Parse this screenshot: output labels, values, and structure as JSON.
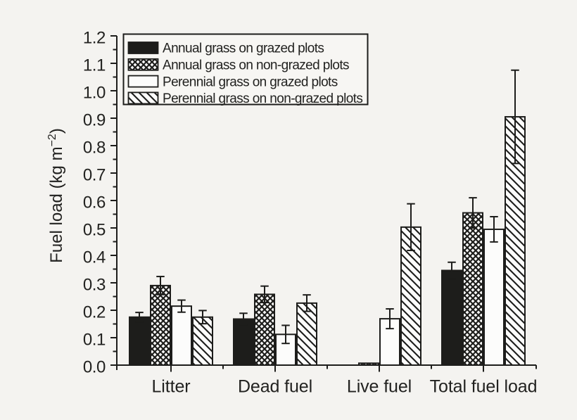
{
  "colors": {
    "background": "#f4f3f0",
    "ink": "#1d1d1b",
    "text": "#222220",
    "bar_white_fill": "#fcfcfb",
    "legend_fill": "#f7f6f3"
  },
  "chart_data": {
    "type": "bar",
    "title": "",
    "xlabel": "",
    "ylabel": "Fuel load (kg m⁻²)",
    "ylabel_parts": {
      "pre": "Fuel load (kg m",
      "sup": "−2",
      "post": ")"
    },
    "ylim": [
      0,
      1.2
    ],
    "ytick_step": 0.1,
    "yminor_step": 0.05,
    "ytick_labels": [
      "0.0",
      "0.1",
      "0.2",
      "0.3",
      "0.4",
      "0.5",
      "0.6",
      "0.7",
      "0.8",
      "0.9",
      "1.0",
      "1.1",
      "1.2"
    ],
    "grid": false,
    "legend_position": "upper-left",
    "categories": [
      "Litter",
      "Dead fuel",
      "Live fuel",
      "Total fuel load"
    ],
    "series": [
      {
        "name": "Annual grass on grazed plots",
        "pattern": "solid-black",
        "values": [
          0.175,
          0.168,
          0,
          0.345
        ],
        "errors": [
          0.017,
          0.021,
          0,
          0.03
        ]
      },
      {
        "name": "Annual grass on non-grazed plots",
        "pattern": "crosshatch",
        "values": [
          0.29,
          0.258,
          0.007,
          0.555
        ],
        "errors": [
          0.033,
          0.03,
          0,
          0.055
        ]
      },
      {
        "name": "Perennial grass on grazed plots",
        "pattern": "white",
        "values": [
          0.215,
          0.112,
          0.169,
          0.495
        ],
        "errors": [
          0.022,
          0.033,
          0.036,
          0.046
        ]
      },
      {
        "name": "Perennial grass on non-grazed plots",
        "pattern": "diagonal",
        "values": [
          0.175,
          0.226,
          0.503,
          0.905
        ],
        "errors": [
          0.024,
          0.03,
          0.085,
          0.17
        ]
      }
    ]
  }
}
